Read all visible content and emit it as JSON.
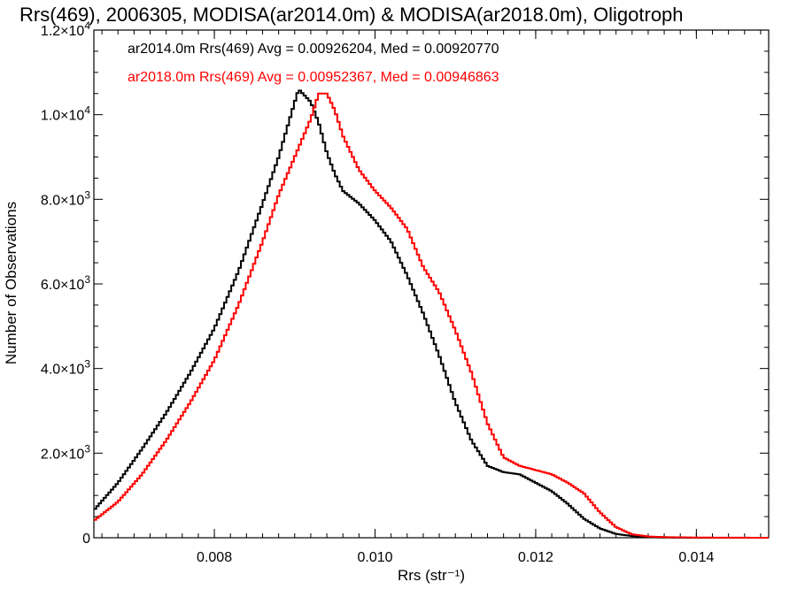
{
  "chart_data": {
    "type": "line",
    "step": true,
    "title": "Rrs(469), 2006305, MODISA(ar2014.0m) & MODISA(ar2018.0m), Oligotroph",
    "xlabel": "Rrs (str⁻¹)",
    "ylabel": "Number of Observations",
    "xlim": [
      0.0065,
      0.0149
    ],
    "ylim": [
      0,
      12000
    ],
    "x_ticks": [
      0.008,
      0.01,
      0.012,
      0.014
    ],
    "x_tick_labels": [
      "0.008",
      "0.010",
      "0.012",
      "0.014"
    ],
    "y_ticks": [
      0,
      2000,
      4000,
      6000,
      8000,
      10000,
      12000
    ],
    "y_tick_labels": [
      {
        "mant": "0",
        "exp": ""
      },
      {
        "mant": "2.0×10",
        "exp": "3"
      },
      {
        "mant": "4.0×10",
        "exp": "3"
      },
      {
        "mant": "6.0×10",
        "exp": "3"
      },
      {
        "mant": "8.0×10",
        "exp": "3"
      },
      {
        "mant": "1.0×10",
        "exp": "4"
      },
      {
        "mant": "1.2×10",
        "exp": "4"
      }
    ],
    "grid": false,
    "legend_position": "top-left",
    "series": [
      {
        "name": "ar2014.0m",
        "legend_text": "ar2014.0m Rrs(469) Avg = 0.00926204, Med = 0.00920770",
        "color": "#000000",
        "points": [
          [
            0.0065,
            650
          ],
          [
            0.0068,
            1300
          ],
          [
            0.0071,
            2100
          ],
          [
            0.0074,
            2950
          ],
          [
            0.0077,
            3900
          ],
          [
            0.008,
            4950
          ],
          [
            0.0083,
            6300
          ],
          [
            0.0086,
            7900
          ],
          [
            0.0088,
            9000
          ],
          [
            0.009,
            10300
          ],
          [
            0.00905,
            10600
          ],
          [
            0.0091,
            10500
          ],
          [
            0.0092,
            10300
          ],
          [
            0.0093,
            9800
          ],
          [
            0.0094,
            9100
          ],
          [
            0.0095,
            8600
          ],
          [
            0.0096,
            8200
          ],
          [
            0.0098,
            7900
          ],
          [
            0.01,
            7500
          ],
          [
            0.0102,
            7000
          ],
          [
            0.0104,
            6200
          ],
          [
            0.0106,
            5300
          ],
          [
            0.0108,
            4300
          ],
          [
            0.011,
            3200
          ],
          [
            0.0112,
            2300
          ],
          [
            0.0114,
            1700
          ],
          [
            0.0116,
            1550
          ],
          [
            0.0118,
            1500
          ],
          [
            0.012,
            1300
          ],
          [
            0.0122,
            1100
          ],
          [
            0.0124,
            800
          ],
          [
            0.0126,
            450
          ],
          [
            0.0128,
            220
          ],
          [
            0.013,
            90
          ],
          [
            0.0132,
            40
          ],
          [
            0.0134,
            15
          ],
          [
            0.0136,
            5
          ],
          [
            0.014,
            0
          ],
          [
            0.0149,
            0
          ]
        ]
      },
      {
        "name": "ar2018.0m",
        "legend_text": "ar2018.0m Rrs(469) Avg = 0.00952367, Med = 0.00946863",
        "color": "#ff0000",
        "points": [
          [
            0.0065,
            400
          ],
          [
            0.0068,
            850
          ],
          [
            0.0071,
            1500
          ],
          [
            0.0074,
            2300
          ],
          [
            0.0077,
            3200
          ],
          [
            0.008,
            4200
          ],
          [
            0.0083,
            5500
          ],
          [
            0.0086,
            7000
          ],
          [
            0.0088,
            8100
          ],
          [
            0.009,
            9000
          ],
          [
            0.0092,
            9900
          ],
          [
            0.0093,
            10500
          ],
          [
            0.0094,
            10500
          ],
          [
            0.0095,
            10100
          ],
          [
            0.0096,
            9500
          ],
          [
            0.0098,
            8700
          ],
          [
            0.01,
            8200
          ],
          [
            0.0102,
            7800
          ],
          [
            0.0104,
            7300
          ],
          [
            0.0106,
            6400
          ],
          [
            0.0108,
            5800
          ],
          [
            0.011,
            4900
          ],
          [
            0.0112,
            3900
          ],
          [
            0.0114,
            2700
          ],
          [
            0.0116,
            1900
          ],
          [
            0.0118,
            1700
          ],
          [
            0.012,
            1600
          ],
          [
            0.0122,
            1500
          ],
          [
            0.0124,
            1300
          ],
          [
            0.0126,
            1050
          ],
          [
            0.0128,
            600
          ],
          [
            0.013,
            250
          ],
          [
            0.0132,
            80
          ],
          [
            0.0134,
            30
          ],
          [
            0.0136,
            15
          ],
          [
            0.014,
            5
          ],
          [
            0.0149,
            0
          ]
        ]
      }
    ]
  }
}
